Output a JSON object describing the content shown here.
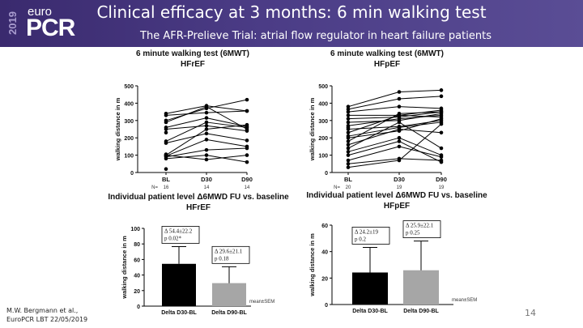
{
  "slide": {
    "title": "Clinical efficacy at 3 months: 6 min walking test",
    "subtitle": "The AFR-Prelieve Trial: atrial flow regulator in heart failure patients",
    "logo": {
      "year": "2019",
      "euro": "euro",
      "pcr": "PCR"
    },
    "footer_lines": [
      "M.W. Bergmann et al.,",
      "EuroPCR LBT 22/05/2019"
    ],
    "page_number": "14"
  },
  "chart_data": [
    {
      "type": "line",
      "title": "6 minute walking test (6MWT)",
      "subtitle": "HFrEF",
      "ylabel": "walking distance in m",
      "categories": [
        "BL",
        "D30",
        "D90"
      ],
      "n_prefix": "N=",
      "n_values": [
        "16",
        "14",
        "14"
      ],
      "ylim": [
        0,
        500
      ],
      "yticks": [
        0,
        100,
        200,
        300,
        400,
        500
      ],
      "series": [
        {
          "values": [
            340,
            385,
            355
          ]
        },
        {
          "values": [
            330,
            345,
            355
          ]
        },
        {
          "values": [
            300,
            370,
            420
          ]
        },
        {
          "values": [
            290,
            380,
            250
          ]
        },
        {
          "values": [
            260,
            315,
            265
          ]
        },
        {
          "values": [
            250,
            270,
            240
          ]
        },
        {
          "values": [
            180,
            290,
            260
          ]
        },
        {
          "values": [
            170,
            225,
            185
          ]
        },
        {
          "values": [
            100,
            250,
            275
          ]
        },
        {
          "values": [
            95,
            190,
            150
          ]
        },
        {
          "values": [
            90,
            130,
            140
          ]
        },
        {
          "values": [
            100,
            75,
            100
          ]
        },
        {
          "values": [
            80,
            100,
            60
          ]
        },
        {
          "values": [
            20,
            null,
            null
          ]
        },
        {
          "values": [
            230,
            null,
            null
          ]
        },
        {
          "values": [
            105,
            null,
            null
          ]
        }
      ]
    },
    {
      "type": "line",
      "title": "6 minute walking test (6MWT)",
      "subtitle": "HFpEF",
      "ylabel": "walking distance in m",
      "categories": [
        "BL",
        "D30",
        "D90"
      ],
      "n_prefix": "N=",
      "n_values": [
        "20",
        "19",
        "19"
      ],
      "ylim": [
        0,
        500
      ],
      "yticks": [
        0,
        100,
        200,
        300,
        400,
        500
      ],
      "series": [
        {
          "values": [
            380,
            465,
            475
          ]
        },
        {
          "values": [
            365,
            425,
            440
          ]
        },
        {
          "values": [
            350,
            380,
            370
          ]
        },
        {
          "values": [
            330,
            330,
            360
          ]
        },
        {
          "values": [
            310,
            320,
            350
          ]
        },
        {
          "values": [
            290,
            300,
            340
          ]
        },
        {
          "values": [
            270,
            310,
            330
          ]
        },
        {
          "values": [
            250,
            265,
            300
          ]
        },
        {
          "values": [
            230,
            330,
            320
          ]
        },
        {
          "values": [
            210,
            260,
            290
          ]
        },
        {
          "values": [
            200,
            240,
            310
          ]
        },
        {
          "values": [
            180,
            340,
            350
          ]
        },
        {
          "values": [
            160,
            250,
            230
          ]
        },
        {
          "values": [
            140,
            290,
            140
          ]
        },
        {
          "values": [
            120,
            200,
            100
          ]
        },
        {
          "values": [
            100,
            180,
            60
          ]
        },
        {
          "values": [
            70,
            150,
            90
          ]
        },
        {
          "values": [
            50,
            80,
            70
          ]
        },
        {
          "values": [
            30,
            70,
            280
          ]
        },
        {
          "values": [
            260,
            null,
            null
          ]
        }
      ]
    },
    {
      "type": "bar",
      "title": "Individual patient level Δ6MWD FU vs. baseline",
      "subtitle": "HFrEF",
      "ylabel": "walking distance in m",
      "categories": [
        "Delta D30-BL",
        "Delta D90-BL"
      ],
      "values": [
        54.4,
        29.6
      ],
      "errors": [
        22.2,
        21.1
      ],
      "colors": [
        "#000000",
        "#a6a6a6"
      ],
      "annotations": [
        {
          "delta": "Δ 54.4±22.2",
          "p": "p 0.02*"
        },
        {
          "delta": "Δ 29.6±21.1",
          "p": "p 0.18"
        }
      ],
      "ylim": [
        0,
        100
      ],
      "yticks": [
        0,
        20,
        40,
        60,
        80,
        100
      ],
      "note": "mean±SEM"
    },
    {
      "type": "bar",
      "title": "Individual patient level Δ6MWD FU vs. baseline",
      "subtitle": "HFpEF",
      "ylabel": "walking distance in m",
      "categories": [
        "Delta D30-BL",
        "Delta D90-BL"
      ],
      "values": [
        24.2,
        25.9
      ],
      "errors": [
        19,
        22.1
      ],
      "colors": [
        "#000000",
        "#a6a6a6"
      ],
      "annotations": [
        {
          "delta": "Δ 24.2±19",
          "p": "p 0.2"
        },
        {
          "delta": "Δ 25.9±22.1",
          "p": "p 0.25"
        }
      ],
      "ylim": [
        0,
        60
      ],
      "yticks": [
        0,
        20,
        40,
        60
      ],
      "note": "mean±SEM"
    }
  ]
}
